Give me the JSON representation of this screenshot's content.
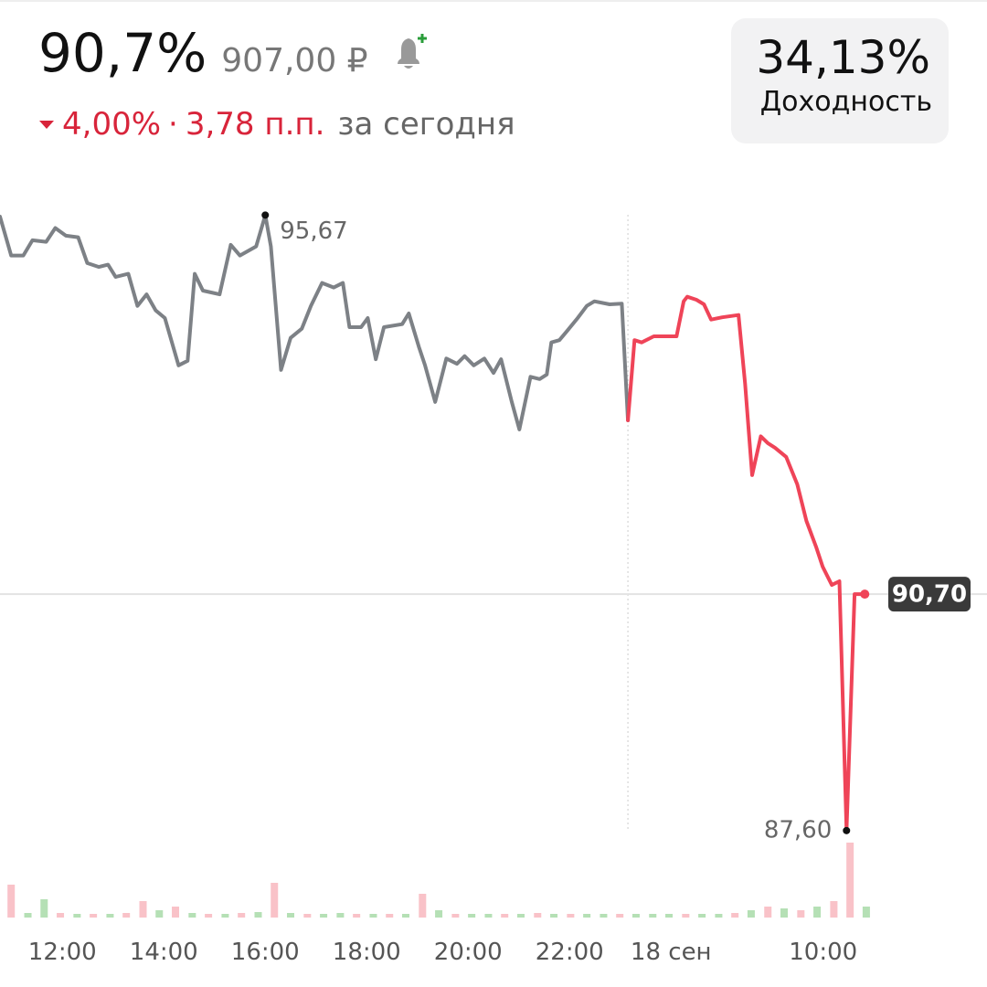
{
  "header": {
    "price_percent": "90,7%",
    "price_rub": "907,00 ₽",
    "change_percent": "4,00%",
    "separator": "·",
    "change_points": "3,78 п.п.",
    "change_period": "за сегодня",
    "yield_value": "34,13%",
    "yield_label": "Доходность"
  },
  "chart_data": {
    "type": "line",
    "x": [
      10.77,
      10.99,
      11.23,
      11.41,
      11.68,
      11.86,
      12.07,
      12.31,
      12.49,
      12.72,
      12.9,
      13.05,
      13.3,
      13.48,
      13.66,
      13.84,
      14.02,
      14.29,
      14.47,
      14.61,
      14.77,
      15.1,
      15.32,
      15.5,
      15.82,
      16.0,
      16.11,
      16.31,
      16.5,
      16.72,
      16.9,
      17.12,
      17.35,
      17.53,
      17.66,
      17.89,
      18.02,
      18.18,
      18.34,
      18.7,
      18.83,
      19.03,
      19.15,
      19.35,
      19.57,
      19.78,
      19.93,
      20.11,
      20.32,
      20.5,
      20.65,
      20.86,
      21.01,
      21.23,
      21.41,
      21.55,
      21.64,
      21.8,
      21.95,
      22.16,
      22.34,
      22.49,
      22.79,
      23.03,
      23.15,
      23.28,
      23.42,
      23.66,
      23.78,
      24.11,
      24.25,
      24.32,
      24.5,
      24.65,
      24.79,
      25.01,
      25.33,
      25.46,
      25.6,
      25.77,
      25.91,
      26.05,
      26.27,
      26.49,
      26.67,
      26.86,
      26.99,
      27.17,
      27.32,
      27.46,
      27.62,
      27.82
    ],
    "series": [
      {
        "color": "#7d8186",
        "values": [
          95.65,
          95.14,
          95.14,
          95.34,
          95.32,
          95.5,
          95.4,
          95.38,
          95.04,
          94.99,
          95.02,
          94.86,
          94.9,
          94.48,
          94.63,
          94.42,
          94.32,
          93.7,
          93.76,
          94.9,
          94.68,
          94.63,
          95.28,
          95.14,
          95.26,
          95.67,
          95.26,
          93.64,
          94.06,
          94.18,
          94.48,
          94.78,
          94.72,
          94.78,
          94.2,
          94.2,
          94.32,
          93.78,
          94.2,
          94.24,
          94.38,
          93.94,
          93.7,
          93.22,
          93.79,
          93.72,
          93.82,
          93.7,
          93.79,
          93.6,
          93.78,
          93.22,
          92.86,
          93.55,
          93.52,
          93.58,
          94.0,
          94.03,
          94.15,
          94.32,
          94.48,
          94.54,
          94.5,
          94.51,
          92.98,
          null,
          null,
          null,
          null,
          null,
          null,
          null,
          null,
          null,
          null,
          null,
          null,
          null,
          null,
          null,
          null,
          null,
          null,
          null,
          null,
          null,
          null,
          null,
          null,
          null,
          null,
          null
        ]
      },
      {
        "color": "#ef4458",
        "values": [
          null,
          null,
          null,
          null,
          null,
          null,
          null,
          null,
          null,
          null,
          null,
          null,
          null,
          null,
          null,
          null,
          null,
          null,
          null,
          null,
          null,
          null,
          null,
          null,
          null,
          null,
          null,
          null,
          null,
          null,
          null,
          null,
          null,
          null,
          null,
          null,
          null,
          null,
          null,
          null,
          null,
          null,
          null,
          null,
          null,
          null,
          null,
          null,
          null,
          null,
          null,
          null,
          null,
          null,
          null,
          null,
          null,
          null,
          null,
          null,
          null,
          null,
          null,
          null,
          92.98,
          94.03,
          94.0,
          94.08,
          94.08,
          94.08,
          94.54,
          94.6,
          94.56,
          94.5,
          94.3,
          94.33,
          94.36,
          93.46,
          92.26,
          92.77,
          92.68,
          92.62,
          92.5,
          92.14,
          91.66,
          91.32,
          91.06,
          90.82,
          90.87,
          87.6,
          90.7,
          90.7
        ]
      }
    ],
    "xlim": [
      10.77,
      30.23
    ],
    "ylim": [
      86.46,
      98.49
    ],
    "xticks": [
      {
        "value": 12,
        "label": "12:00"
      },
      {
        "value": 14,
        "label": "14:00"
      },
      {
        "value": 16,
        "label": "16:00"
      },
      {
        "value": 18,
        "label": "18:00"
      },
      {
        "value": 20,
        "label": "20:00"
      },
      {
        "value": 22,
        "label": "22:00"
      },
      {
        "value": 24,
        "label": "18 сен"
      },
      {
        "value": 27,
        "label": "10:00"
      }
    ],
    "session_break": 23.15,
    "annotations": [
      {
        "x": 16.0,
        "value": 95.67,
        "label": "95,67"
      },
      {
        "x": 27.46,
        "value": 87.6,
        "label": "87,60"
      }
    ],
    "price_line": {
      "value": 90.7,
      "label": "90,70"
    },
    "volume": {
      "ylim": [
        0,
        90
      ],
      "x": [
        10.99,
        11.32,
        11.64,
        11.96,
        12.29,
        12.61,
        12.94,
        13.26,
        13.59,
        13.91,
        14.23,
        14.56,
        14.88,
        15.21,
        15.53,
        15.86,
        16.18,
        16.5,
        16.83,
        17.15,
        17.48,
        17.8,
        18.13,
        18.45,
        18.77,
        19.1,
        19.42,
        19.75,
        20.07,
        20.4,
        20.72,
        21.04,
        21.37,
        21.69,
        22.02,
        22.34,
        22.67,
        22.99,
        23.31,
        23.64,
        23.96,
        24.29,
        24.61,
        24.94,
        25.26,
        25.58,
        25.91,
        26.23,
        26.56,
        26.88,
        27.21,
        27.53,
        27.85
      ],
      "series": [
        {
          "color": "#f9c2c8",
          "values": [
            36,
            null,
            null,
            5,
            null,
            4,
            null,
            5,
            18,
            null,
            12,
            null,
            4,
            null,
            5,
            null,
            38,
            null,
            4,
            null,
            null,
            4,
            null,
            4,
            null,
            26,
            null,
            4,
            null,
            null,
            4,
            null,
            5,
            null,
            4,
            null,
            null,
            4,
            null,
            null,
            null,
            4,
            null,
            null,
            5,
            null,
            12,
            null,
            8,
            null,
            18,
            82,
            null
          ]
        },
        {
          "color": "#b5e0b5",
          "values": [
            null,
            5,
            20,
            null,
            4,
            null,
            4,
            null,
            null,
            8,
            null,
            5,
            null,
            4,
            null,
            6,
            null,
            5,
            null,
            4,
            5,
            null,
            4,
            null,
            4,
            null,
            8,
            null,
            4,
            4,
            null,
            4,
            null,
            4,
            null,
            4,
            4,
            null,
            4,
            4,
            4,
            null,
            4,
            4,
            null,
            8,
            null,
            10,
            null,
            12,
            null,
            null,
            12
          ]
        }
      ]
    }
  }
}
